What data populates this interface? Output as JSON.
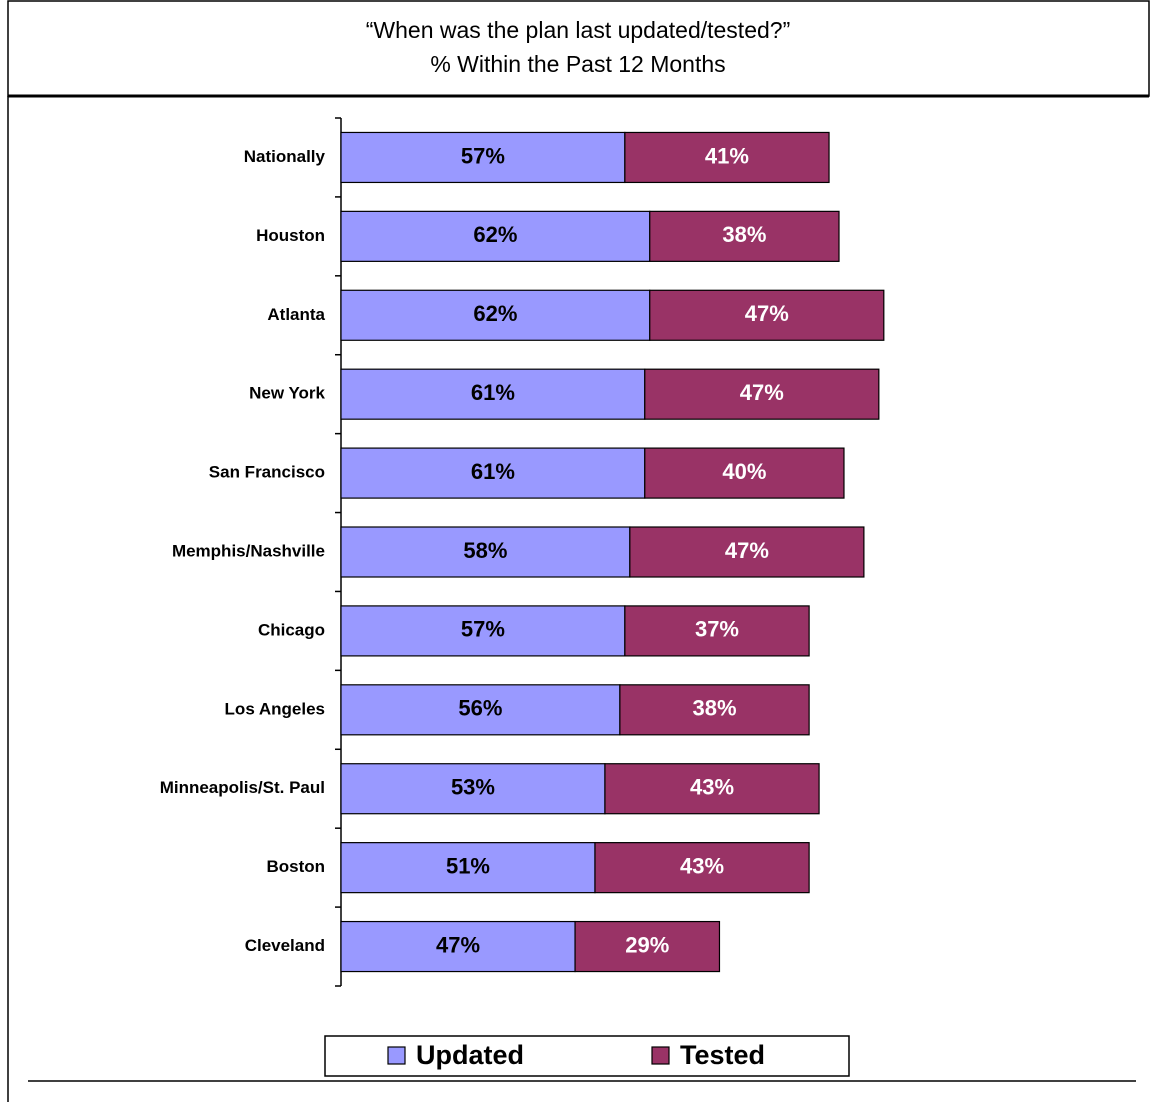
{
  "chart_data": {
    "type": "stacked_bar_horizontal",
    "title": "“When was the plan last updated/tested?”",
    "subtitle": "% Within the Past 12 Months",
    "categories": [
      "Nationally",
      "Houston",
      "Atlanta",
      "New York",
      "San Francisco",
      "Memphis/Nashville",
      "Chicago",
      "Los Angeles",
      "Minneapolis/St. Paul",
      "Boston",
      "Cleveland"
    ],
    "series": [
      {
        "name": "Updated",
        "color": "#9999ff",
        "values": [
          57,
          62,
          62,
          61,
          61,
          58,
          57,
          56,
          53,
          51,
          47
        ],
        "value_labels": [
          "57%",
          "62%",
          "62%",
          "61%",
          "61%",
          "58%",
          "57%",
          "56%",
          "53%",
          "51%",
          "47%"
        ]
      },
      {
        "name": "Tested",
        "color": "#993366",
        "values": [
          41,
          38,
          47,
          47,
          40,
          47,
          37,
          38,
          43,
          43,
          29
        ],
        "value_labels": [
          "41%",
          "38%",
          "47%",
          "47%",
          "40%",
          "47%",
          "37%",
          "38%",
          "43%",
          "43%",
          "29%"
        ]
      }
    ],
    "legend": "bottom"
  }
}
